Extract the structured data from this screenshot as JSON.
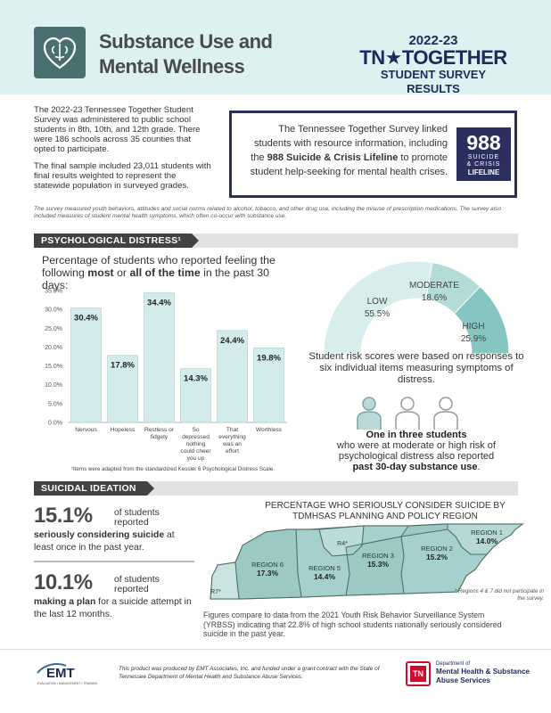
{
  "header": {
    "title_line1": "Substance Use and",
    "title_line2": "Mental Wellness",
    "brand_year": "2022-23",
    "brand_name": "TN★TOGETHER",
    "brand_sub": "STUDENT SURVEY RESULTS",
    "logo_icon": "brain-heart-icon",
    "colors": {
      "header_bg": "#def1f1",
      "logo_bg": "#4a6f71",
      "brand_navy": "#1e2a5a"
    }
  },
  "intro": {
    "para1": "The 2022-23 Tennessee Together Student Survey was administered to public school students in 8th, 10th, and 12th grade. There were 186 schools across 35 counties that opted to participate.",
    "para2": "The final sample included 23,011 students with final results weighted to represent the statewide population in surveyed grades."
  },
  "lifeline": {
    "text_before": "The Tennessee Together Survey linked students with resource information, including the ",
    "text_bold": "988 Suicide & Crisis Lifeline",
    "text_after": " to promote student help-seeking for mental health crises.",
    "logo_num": "988",
    "logo_sub1": "SUICIDE",
    "logo_sub2": "& CRISIS",
    "logo_sub3": "LIFELINE"
  },
  "measures_note": "The survey measured youth behaviors, attitudes and social norms related to alcohol, tobacco, and other drug use, including the misuse of prescription medications. The survey also included measures of student mental health symptoms, which often co-occur with substance use.",
  "section_psych": "PSYCHOLOGICAL DISTRESS¹",
  "section_suicide": "SUICIDAL IDEATION",
  "psych": {
    "heading_pre": "Percentage of students who reported feeling the following ",
    "heading_bold1": "most",
    "heading_mid": " or ",
    "heading_bold2": "all of the time",
    "heading_post": " in the past 30 days:",
    "footnote": "¹Items were adapted from the standardized Kessler 6 Psychological Distress Scale."
  },
  "chart_data": [
    {
      "type": "bar",
      "categories": [
        "Nervous",
        "Hopeless",
        "Restless or fidgety",
        "So depressed nothing could cheer you up",
        "That everything was an effort",
        "Worthless"
      ],
      "category_lines": [
        [
          "Nervous"
        ],
        [
          "Hopeless"
        ],
        [
          "Restless or",
          "fidgety"
        ],
        [
          "So",
          "depressed",
          "nothing",
          "could cheer",
          "you up"
        ],
        [
          "That",
          "everything",
          "was an",
          "effort"
        ],
        [
          "Worthless"
        ]
      ],
      "values": [
        30.4,
        17.8,
        34.4,
        14.3,
        24.4,
        19.8
      ],
      "value_labels": [
        "30.4%",
        "17.8%",
        "34.4%",
        "14.3%",
        "24.4%",
        "19.8%"
      ],
      "yticks": [
        "0.0%",
        "5.0%",
        "10.0%",
        "15.0%",
        "20.0%",
        "25.0%",
        "30.0%",
        "35.0%"
      ],
      "ylim": [
        0,
        35
      ],
      "grid": false,
      "bar_color": "#d3ebea"
    },
    {
      "type": "pie",
      "categories": [
        "LOW",
        "MODERATE",
        "HIGH"
      ],
      "values": [
        55.5,
        18.6,
        25.9
      ],
      "value_labels": [
        "55.5%",
        "18.6%",
        "25.9%"
      ],
      "colors": [
        "#d8eeed",
        "#b3dcd9",
        "#86c6c2"
      ]
    },
    {
      "type": "table",
      "title": "PERCENTAGE WHO SERIOUSLY CONSIDER SUICIDE BY TDMHSAS PLANNING AND POLICY REGION",
      "categories": [
        "REGION 1",
        "REGION 2",
        "REGION 3",
        "R4*",
        "REGION 5",
        "REGION 6",
        "R7*"
      ],
      "values": [
        14.0,
        15.2,
        15.3,
        null,
        14.4,
        17.3,
        null
      ],
      "value_labels": [
        "14.0%",
        "15.2%",
        "15.3%",
        "",
        "14.4%",
        "17.3%",
        ""
      ]
    }
  ],
  "gauge": {
    "caption": "Student risk scores were based on responses to six individual items measuring symptoms of distress."
  },
  "people": {
    "bold1": "One in three students",
    "line2": "who were at moderate or high risk of psychological distress also reported",
    "bold2": "past 30-day substance use",
    "end": "."
  },
  "suicide": {
    "stat1_value": "15.1%",
    "stat1_side": "of students reported",
    "stat1_bold": "seriously considering suicide",
    "stat1_rest": " at least once in the past year.",
    "stat2_value": "10.1%",
    "stat2_side": "of students reported",
    "stat2_bold": "making a plan",
    "stat2_rest": " for a suicide attempt in the last 12 months.",
    "map_note": "* Regions 4 & 7 did not participate in the survey.",
    "compare": "Figures compare to data from the 2021 Youth Risk Behavior Surveillance System (YRBSS) indicating that 22.8% of high school students nationally seriously considered suicide in the past year."
  },
  "footer": {
    "emt_name": "EMT",
    "emt_sub": "EVALUATION • MANAGEMENT • TRAINING",
    "credit": "This product was produced by EMT Associates, Inc. and funded under a grant contract with the State of Tennessee Department of Mental Health and Substance Abuse Services.",
    "tn_badge": "TN",
    "tn_dept": "Department of",
    "tn_name": "Mental Health & Substance Abuse Services"
  }
}
